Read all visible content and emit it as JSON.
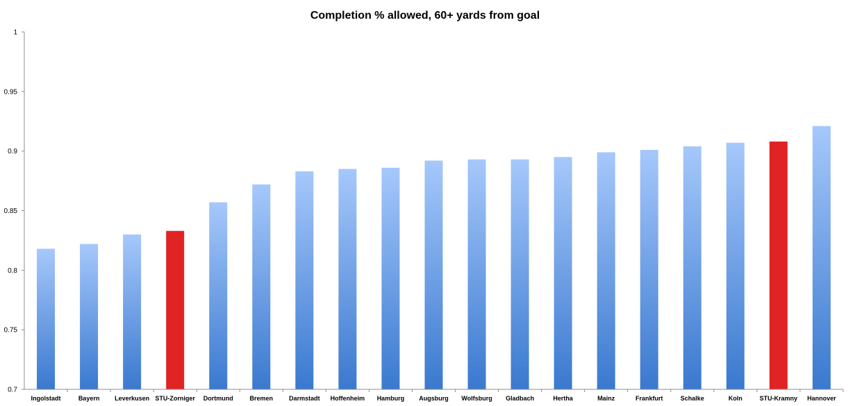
{
  "chart_data": {
    "type": "bar",
    "title": "Completion % allowed, 60+ yards from goal",
    "xlabel": "",
    "ylabel": "",
    "ylim": [
      0.7,
      1
    ],
    "yticks": [
      "0.7",
      "0.75",
      "0.8",
      "0.85",
      "0.9",
      "0.95",
      "1"
    ],
    "grid": false,
    "legend": "none",
    "categories": [
      "Ingolstadt",
      "Bayern",
      "Leverkusen",
      "STU-Zorniger",
      "Dortmund",
      "Bremen",
      "Darmstadt",
      "Hoffenheim",
      "Hamburg",
      "Augsburg",
      "Wolfsburg",
      "Gladbach",
      "Hertha",
      "Mainz",
      "Frankfurt",
      "Schalke",
      "Koln",
      "STU-Kramny",
      "Hannover"
    ],
    "values": [
      0.818,
      0.822,
      0.83,
      0.833,
      0.857,
      0.872,
      0.883,
      0.885,
      0.886,
      0.892,
      0.893,
      0.893,
      0.895,
      0.899,
      0.901,
      0.904,
      0.907,
      0.908,
      0.921
    ],
    "highlight": [
      false,
      false,
      false,
      true,
      false,
      false,
      false,
      false,
      false,
      false,
      false,
      false,
      false,
      false,
      false,
      false,
      false,
      true,
      false
    ],
    "colors": {
      "bar_top": "#a6c8fb",
      "bar_bottom": "#3a79cf",
      "highlight": "#e02424",
      "axis": "#8c8c8c"
    }
  }
}
